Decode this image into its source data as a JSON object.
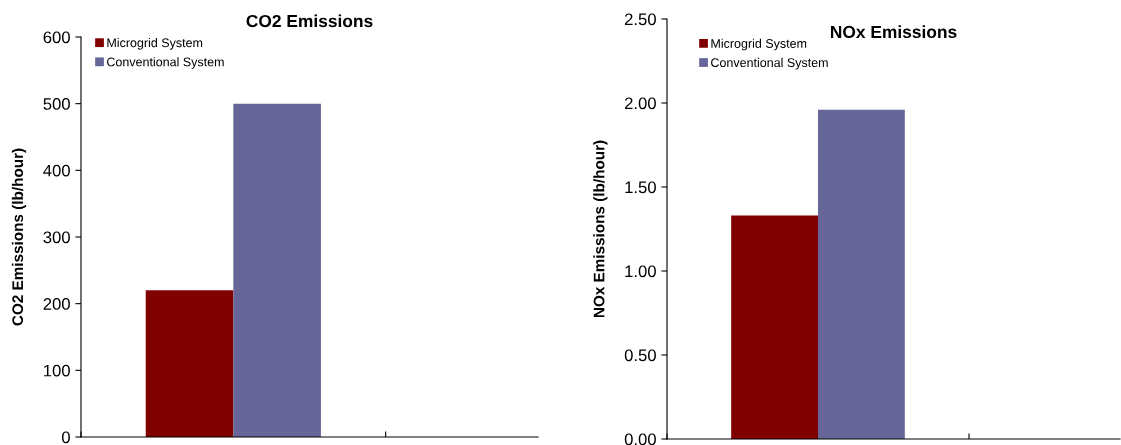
{
  "chart_data": [
    {
      "type": "bar",
      "title": "CO2 Emissions",
      "ylabel": "CO2 Emissions (lb/hour)",
      "categories": [
        null
      ],
      "series": [
        {
          "name": "Microgrid System",
          "color": "#800000",
          "values": [
            220
          ]
        },
        {
          "name": "Conventional System",
          "color": "#666699",
          "values": [
            500
          ]
        }
      ],
      "ylim": [
        0,
        600
      ],
      "yticks": [
        0,
        100,
        200,
        300,
        400,
        500,
        600
      ],
      "grid": false,
      "legend": "top left"
    },
    {
      "type": "bar",
      "title": "NOx Emissions",
      "ylabel": "NOx Emissions (lb/hour)",
      "categories": [
        null
      ],
      "series": [
        {
          "name": "Microgrid System",
          "color": "#800000",
          "values": [
            1.33
          ]
        },
        {
          "name": "Conventional System",
          "color": "#666699",
          "values": [
            1.96
          ]
        }
      ],
      "ylim": [
        0,
        2.5
      ],
      "yticks": [
        {
          "value": 0,
          "label": "0.00"
        },
        {
          "value": 0.5,
          "label": "0.50"
        },
        {
          "value": 1,
          "label": "1.00"
        },
        {
          "value": 1.5,
          "label": "1.50"
        },
        {
          "value": 2,
          "label": "2.00"
        },
        {
          "value": 2.5,
          "label": "2.50"
        }
      ],
      "grid": false,
      "legend": "top left"
    }
  ]
}
